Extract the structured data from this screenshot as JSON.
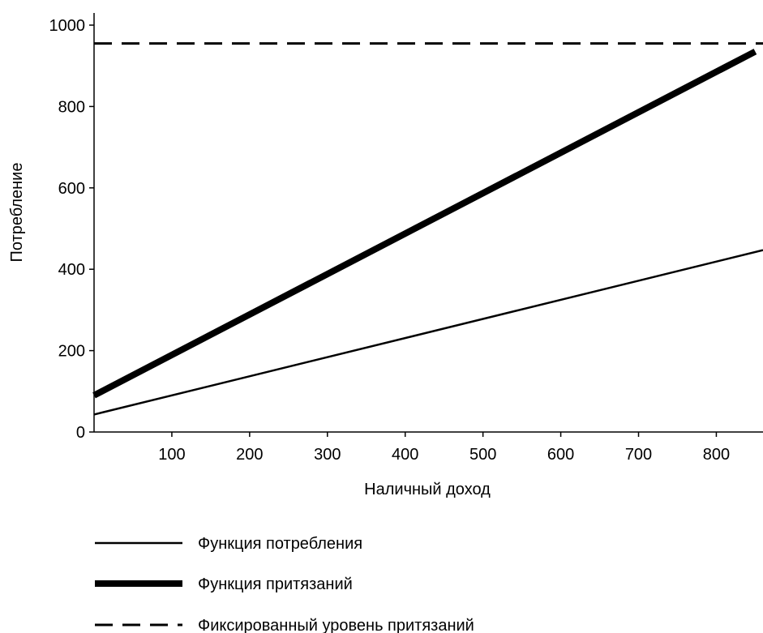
{
  "chart_data": {
    "type": "line",
    "title": "",
    "xlabel": "Наличный доход",
    "ylabel": "Потребление",
    "xlim": [
      0,
      860
    ],
    "ylim": [
      0,
      1000
    ],
    "x_ticks": [
      100,
      200,
      300,
      400,
      500,
      600,
      700,
      800
    ],
    "y_ticks": [
      0,
      200,
      400,
      600,
      800,
      1000
    ],
    "grid": false,
    "legend_position": "bottom",
    "series": [
      {
        "name": "Функция потребления",
        "style": "thin-solid",
        "color": "#000000",
        "x": [
          0,
          860
        ],
        "y": [
          43,
          447
        ]
      },
      {
        "name": "Функция притязаний",
        "style": "thick-solid",
        "color": "#000000",
        "x": [
          0,
          850
        ],
        "y": [
          90,
          935
        ]
      },
      {
        "name": "Фиксированный уровень притязаний",
        "style": "dashed",
        "color": "#000000",
        "x": [
          0,
          860
        ],
        "y": [
          955,
          955
        ]
      }
    ]
  }
}
